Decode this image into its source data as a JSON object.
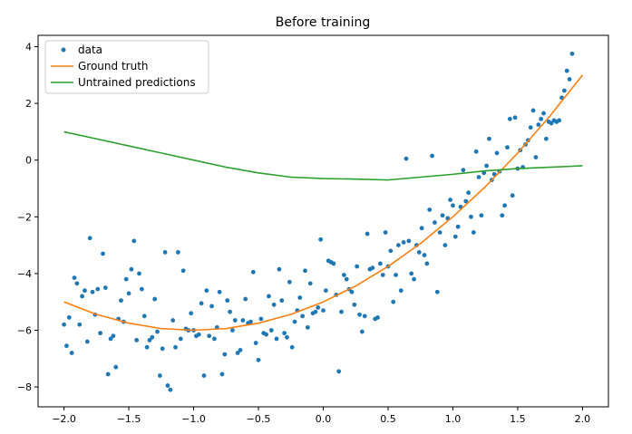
{
  "chart_data": {
    "type": "scatter",
    "title": "Before training",
    "xlabel": "",
    "ylabel": "",
    "xlim": [
      -2.2,
      2.2
    ],
    "ylim": [
      -8.7,
      4.4
    ],
    "xticks": [
      -2.0,
      -1.5,
      -1.0,
      -0.5,
      0.0,
      0.5,
      1.0,
      1.5,
      2.0
    ],
    "xtick_labels": [
      "−2.0",
      "−1.5",
      "−1.0",
      "−0.5",
      "0.0",
      "0.5",
      "1.0",
      "1.5",
      "2.0"
    ],
    "yticks": [
      -8,
      -6,
      -4,
      -2,
      0,
      2,
      4
    ],
    "ytick_labels": [
      "−8",
      "−6",
      "−4",
      "−2",
      "0",
      "2",
      "4"
    ],
    "grid": false,
    "legend_position": "top-left",
    "series": [
      {
        "name": "data",
        "kind": "scatter",
        "color": "#1f77b4",
        "points": [
          [
            -2.0,
            -5.8
          ],
          [
            -1.98,
            -6.55
          ],
          [
            -1.96,
            -5.55
          ],
          [
            -1.94,
            -6.8
          ],
          [
            -1.92,
            -4.15
          ],
          [
            -1.9,
            -4.35
          ],
          [
            -1.88,
            -5.8
          ],
          [
            -1.86,
            -4.8
          ],
          [
            -1.84,
            -4.6
          ],
          [
            -1.82,
            -6.4
          ],
          [
            -1.8,
            -2.75
          ],
          [
            -1.78,
            -4.65
          ],
          [
            -1.76,
            -5.45
          ],
          [
            -1.74,
            -4.55
          ],
          [
            -1.72,
            -6.1
          ],
          [
            -1.7,
            -3.3
          ],
          [
            -1.68,
            -4.5
          ],
          [
            -1.66,
            -7.55
          ],
          [
            -1.64,
            -6.3
          ],
          [
            -1.62,
            -6.2
          ],
          [
            -1.6,
            -7.3
          ],
          [
            -1.58,
            -5.6
          ],
          [
            -1.56,
            -4.95
          ],
          [
            -1.54,
            -5.7
          ],
          [
            -1.52,
            -4.2
          ],
          [
            -1.5,
            -4.7
          ],
          [
            -1.48,
            -3.85
          ],
          [
            -1.46,
            -2.85
          ],
          [
            -1.44,
            -6.35
          ],
          [
            -1.42,
            -4.0
          ],
          [
            -1.4,
            -4.55
          ],
          [
            -1.38,
            -5.5
          ],
          [
            -1.36,
            -6.6
          ],
          [
            -1.34,
            -6.35
          ],
          [
            -1.32,
            -6.25
          ],
          [
            -1.3,
            -4.9
          ],
          [
            -1.28,
            -6.05
          ],
          [
            -1.26,
            -7.6
          ],
          [
            -1.24,
            -6.65
          ],
          [
            -1.22,
            -3.25
          ],
          [
            -1.2,
            -7.95
          ],
          [
            -1.18,
            -8.1
          ],
          [
            -1.16,
            -5.65
          ],
          [
            -1.14,
            -6.6
          ],
          [
            -1.12,
            -3.25
          ],
          [
            -1.1,
            -6.3
          ],
          [
            -1.08,
            -3.9
          ],
          [
            -1.06,
            -5.95
          ],
          [
            -1.04,
            -6.0
          ],
          [
            -1.02,
            -5.4
          ],
          [
            -1.0,
            -6.0
          ],
          [
            -0.98,
            -6.2
          ],
          [
            -0.96,
            -6.15
          ],
          [
            -0.94,
            -5.05
          ],
          [
            -0.92,
            -7.6
          ],
          [
            -0.9,
            -4.6
          ],
          [
            -0.88,
            -6.2
          ],
          [
            -0.86,
            -5.15
          ],
          [
            -0.84,
            -6.3
          ],
          [
            -0.82,
            -5.9
          ],
          [
            -0.8,
            -4.65
          ],
          [
            -0.78,
            -7.55
          ],
          [
            -0.76,
            -6.85
          ],
          [
            -0.74,
            -4.95
          ],
          [
            -0.72,
            -5.35
          ],
          [
            -0.7,
            -6.0
          ],
          [
            -0.68,
            -5.65
          ],
          [
            -0.66,
            -6.8
          ],
          [
            -0.64,
            -6.7
          ],
          [
            -0.62,
            -5.65
          ],
          [
            -0.6,
            -4.9
          ],
          [
            -0.58,
            -5.75
          ],
          [
            -0.56,
            -5.7
          ],
          [
            -0.54,
            -3.95
          ],
          [
            -0.52,
            -6.45
          ],
          [
            -0.5,
            -7.05
          ],
          [
            -0.48,
            -5.6
          ],
          [
            -0.46,
            -6.1
          ],
          [
            -0.44,
            -6.15
          ],
          [
            -0.42,
            -4.8
          ],
          [
            -0.4,
            -6.0
          ],
          [
            -0.38,
            -5.1
          ],
          [
            -0.36,
            -6.3
          ],
          [
            -0.34,
            -3.85
          ],
          [
            -0.32,
            -4.95
          ],
          [
            -0.3,
            -6.1
          ],
          [
            -0.28,
            -6.25
          ],
          [
            -0.26,
            -4.3
          ],
          [
            -0.24,
            -6.6
          ],
          [
            -0.22,
            -5.7
          ],
          [
            -0.2,
            -5.3
          ],
          [
            -0.18,
            -4.85
          ],
          [
            -0.16,
            -5.5
          ],
          [
            -0.14,
            -3.9
          ],
          [
            -0.12,
            -5.9
          ],
          [
            -0.1,
            -4.35
          ],
          [
            -0.08,
            -5.4
          ],
          [
            -0.06,
            -5.35
          ],
          [
            -0.04,
            -5.2
          ],
          [
            -0.02,
            -2.8
          ],
          [
            0.0,
            -5.3
          ],
          [
            0.02,
            -4.6
          ],
          [
            0.04,
            -3.55
          ],
          [
            0.06,
            -3.6
          ],
          [
            0.08,
            -3.65
          ],
          [
            0.1,
            -4.75
          ],
          [
            0.12,
            -7.45
          ],
          [
            0.14,
            -5.35
          ],
          [
            0.16,
            -4.05
          ],
          [
            0.18,
            -4.2
          ],
          [
            0.2,
            -4.55
          ],
          [
            0.22,
            -4.65
          ],
          [
            0.24,
            -5.1
          ],
          [
            0.26,
            -3.75
          ],
          [
            0.28,
            -5.45
          ],
          [
            0.3,
            -6.05
          ],
          [
            0.32,
            -5.5
          ],
          [
            0.34,
            -2.6
          ],
          [
            0.36,
            -3.85
          ],
          [
            0.38,
            -3.8
          ],
          [
            0.4,
            -5.6
          ],
          [
            0.42,
            -5.55
          ],
          [
            0.44,
            -3.65
          ],
          [
            0.46,
            -4.05
          ],
          [
            0.48,
            -2.55
          ],
          [
            0.5,
            -3.75
          ],
          [
            0.52,
            -3.2
          ],
          [
            0.54,
            -5.0
          ],
          [
            0.56,
            -4.05
          ],
          [
            0.58,
            -3.0
          ],
          [
            0.6,
            -4.6
          ],
          [
            0.62,
            -2.9
          ],
          [
            0.64,
            0.05
          ],
          [
            0.66,
            -2.85
          ],
          [
            0.68,
            -4.0
          ],
          [
            0.7,
            -4.2
          ],
          [
            0.72,
            -3.0
          ],
          [
            0.74,
            -3.25
          ],
          [
            0.76,
            -2.4
          ],
          [
            0.78,
            -3.35
          ],
          [
            0.8,
            -3.65
          ],
          [
            0.82,
            -1.75
          ],
          [
            0.84,
            0.15
          ],
          [
            0.86,
            -2.2
          ],
          [
            0.88,
            -4.65
          ],
          [
            0.9,
            -2.55
          ],
          [
            0.92,
            -1.95
          ],
          [
            0.94,
            -3.0
          ],
          [
            0.96,
            -2.05
          ],
          [
            0.98,
            -1.4
          ],
          [
            1.0,
            -1.6
          ],
          [
            1.02,
            -2.7
          ],
          [
            1.04,
            -2.35
          ],
          [
            1.06,
            -1.65
          ],
          [
            1.08,
            -0.35
          ],
          [
            1.1,
            -1.45
          ],
          [
            1.12,
            -1.15
          ],
          [
            1.14,
            -2.0
          ],
          [
            1.16,
            -2.55
          ],
          [
            1.18,
            0.3
          ],
          [
            1.2,
            -0.6
          ],
          [
            1.22,
            -1.95
          ],
          [
            1.24,
            -0.45
          ],
          [
            1.26,
            -0.2
          ],
          [
            1.28,
            0.75
          ],
          [
            1.3,
            -0.7
          ],
          [
            1.32,
            -0.5
          ],
          [
            1.34,
            0.25
          ],
          [
            1.36,
            -0.4
          ],
          [
            1.38,
            -1.95
          ],
          [
            1.4,
            -1.6
          ],
          [
            1.42,
            0.45
          ],
          [
            1.44,
            1.45
          ],
          [
            1.46,
            -1.25
          ],
          [
            1.48,
            1.5
          ],
          [
            1.5,
            -0.3
          ],
          [
            1.52,
            0.35
          ],
          [
            1.54,
            -0.25
          ],
          [
            1.56,
            0.55
          ],
          [
            1.58,
            0.7
          ],
          [
            1.6,
            1.15
          ],
          [
            1.62,
            1.75
          ],
          [
            1.64,
            0.1
          ],
          [
            1.66,
            1.25
          ],
          [
            1.68,
            1.45
          ],
          [
            1.7,
            1.65
          ],
          [
            1.72,
            0.75
          ],
          [
            1.74,
            1.35
          ],
          [
            1.76,
            1.3
          ],
          [
            1.78,
            1.4
          ],
          [
            1.8,
            1.35
          ],
          [
            1.82,
            1.4
          ],
          [
            1.84,
            2.2
          ],
          [
            1.86,
            2.45
          ],
          [
            1.88,
            3.15
          ],
          [
            1.9,
            2.85
          ],
          [
            1.92,
            3.75
          ]
        ]
      },
      {
        "name": "Ground truth",
        "kind": "line",
        "color": "#ff7f0e",
        "x": [
          -2.0,
          -1.75,
          -1.5,
          -1.25,
          -1.0,
          -0.75,
          -0.5,
          -0.25,
          0.0,
          0.25,
          0.5,
          0.75,
          1.0,
          1.25,
          1.5,
          1.75,
          2.0
        ],
        "y": [
          -5.0,
          -5.44,
          -5.75,
          -5.94,
          -6.0,
          -5.94,
          -5.75,
          -5.44,
          -5.0,
          -4.44,
          -3.75,
          -2.94,
          -2.0,
          -0.94,
          0.25,
          1.56,
          3.0
        ]
      },
      {
        "name": "Untrained predictions",
        "kind": "line",
        "color": "#2ca02c",
        "x": [
          -2.0,
          -1.75,
          -1.5,
          -1.25,
          -1.0,
          -0.75,
          -0.5,
          -0.25,
          0.0,
          0.25,
          0.5,
          0.75,
          1.0,
          1.25,
          1.5,
          1.75,
          2.0
        ],
        "y": [
          1.0,
          0.75,
          0.5,
          0.25,
          0.0,
          -0.25,
          -0.45,
          -0.6,
          -0.65,
          -0.67,
          -0.7,
          -0.6,
          -0.5,
          -0.38,
          -0.3,
          -0.25,
          -0.2
        ]
      }
    ]
  }
}
